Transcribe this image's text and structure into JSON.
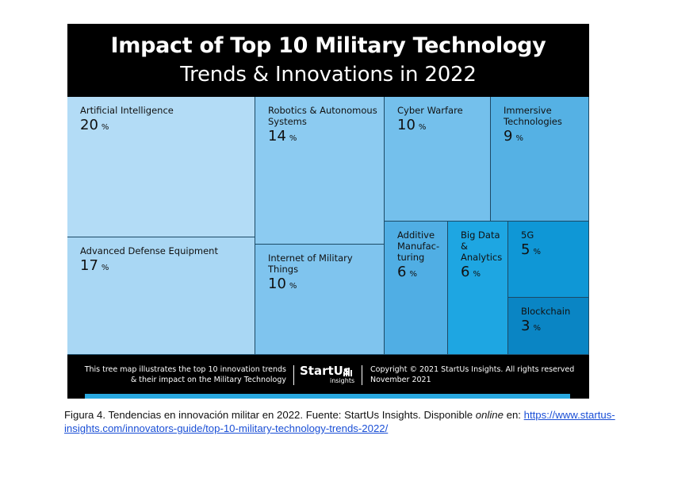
{
  "colors": {
    "panel_background": "#000000",
    "title_text": "#ffffff",
    "footer_bar": "#29a8e0",
    "link": "#1a4fd6"
  },
  "title": {
    "line1": "Impact of Top 10 Military Technology",
    "line2": "Trends & Innovations in 2022"
  },
  "chart_data": {
    "type": "treemap",
    "title": "Impact of Top 10 Military Technology Trends & Innovations in 2022",
    "unit": "%",
    "items": [
      {
        "label": "Artificial Intelligence",
        "value": 20,
        "color": "#b3dcf6"
      },
      {
        "label": "Advanced Defense Equipment",
        "value": 17,
        "color": "#a9d7f4"
      },
      {
        "label": "Robotics & Autonomous\nSystems",
        "value": 14,
        "color": "#8ccbf1"
      },
      {
        "label": "Internet of Military Things",
        "value": 10,
        "color": "#7fc4ee"
      },
      {
        "label": "Cyber Warfare",
        "value": 10,
        "color": "#74c0ec"
      },
      {
        "label": "Immersive\nTechnologies",
        "value": 9,
        "color": "#55b1e4"
      },
      {
        "label": "Additive\nManufac-\nturing",
        "value": 6,
        "color": "#50aee4"
      },
      {
        "label": "Big Data &\nAnalytics",
        "value": 6,
        "color": "#1ea6e2"
      },
      {
        "label": "5G",
        "value": 5,
        "color": "#0f97d6"
      },
      {
        "label": "Blockchain",
        "value": 3,
        "color": "#0a85c4"
      }
    ]
  },
  "footer": {
    "description": "This tree map illustrates the top 10 innovation trends\n& their impact on the Military Technology",
    "logo_name": "StartUs",
    "logo_sub": "insights",
    "copyright": "Copyright © 2021 StartUs Insights. All rights reserved\nNovember 2021"
  },
  "caption": {
    "text_before": "Figura 4. Tendencias en innovación militar en 2022. Fuente: StartUs Insights. Disponible ",
    "italic": "online",
    "text_after": " en: ",
    "link": "https://www.startus-insights.com/innovators-guide/top-10-military-technology-trends-2022/"
  }
}
